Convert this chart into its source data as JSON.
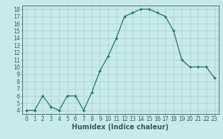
{
  "x": [
    0,
    1,
    2,
    3,
    4,
    5,
    6,
    7,
    8,
    9,
    10,
    11,
    12,
    13,
    14,
    15,
    16,
    17,
    18,
    19,
    20,
    21,
    22,
    23
  ],
  "y": [
    4.0,
    4.0,
    6.0,
    4.5,
    4.0,
    6.0,
    6.0,
    4.0,
    6.5,
    9.5,
    11.5,
    14.0,
    17.0,
    17.5,
    18.0,
    18.0,
    17.5,
    17.0,
    15.0,
    11.0,
    10.0,
    10.0,
    10.0,
    8.5
  ],
  "line_color": "#2e7d6e",
  "marker": "D",
  "marker_size": 2.0,
  "bg_color": "#c8eaea",
  "grid_color": "#a0c8c8",
  "xlabel": "Humidex (Indice chaleur)",
  "xlim": [
    -0.5,
    23.5
  ],
  "ylim": [
    3.5,
    18.5
  ],
  "yticks": [
    4,
    5,
    6,
    7,
    8,
    9,
    10,
    11,
    12,
    13,
    14,
    15,
    16,
    17,
    18
  ],
  "xticks": [
    0,
    1,
    2,
    3,
    4,
    5,
    6,
    7,
    8,
    9,
    10,
    11,
    12,
    13,
    14,
    15,
    16,
    17,
    18,
    19,
    20,
    21,
    22,
    23
  ],
  "tick_label_fontsize": 5.5,
  "xlabel_fontsize": 7,
  "axis_color": "#2e6060",
  "spine_color": "#2e6060",
  "linewidth": 1.0
}
